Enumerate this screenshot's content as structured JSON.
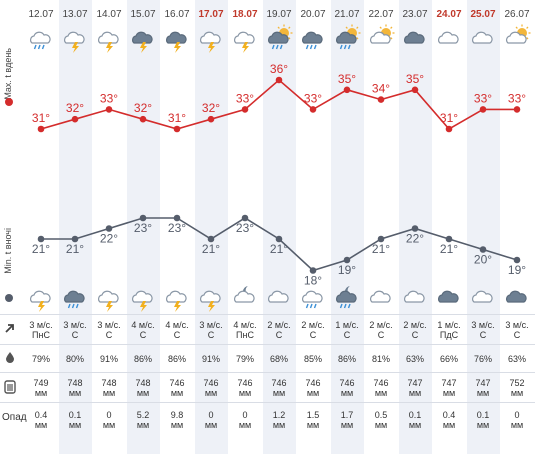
{
  "days": [
    {
      "date": "12.07",
      "weekend": false,
      "tmax": 31,
      "tmax_label": "31°",
      "tmin": 21,
      "tmin_label": "21°",
      "day_icon": "cloud-rain-icon",
      "night_icon": "cloud-lightning-icon",
      "wind": "3 м/с.",
      "wind_dir": "ПнС",
      "humidity": "79%",
      "pressure": "749",
      "pressure_unit": "мм",
      "precip": "0.4",
      "precip_unit": "мм"
    },
    {
      "date": "13.07",
      "weekend": false,
      "tmax": 32,
      "tmax_label": "32°",
      "tmin": 21,
      "tmin_label": "21°",
      "day_icon": "cloud-lightning-icon",
      "night_icon": "dark-cloud-rain-icon",
      "wind": "3 м/с.",
      "wind_dir": "С",
      "humidity": "80%",
      "pressure": "748",
      "pressure_unit": "мм",
      "precip": "0.1",
      "precip_unit": "мм"
    },
    {
      "date": "14.07",
      "weekend": false,
      "tmax": 33,
      "tmax_label": "33°",
      "tmin": 22,
      "tmin_label": "22°",
      "day_icon": "cloud-lightning-icon",
      "night_icon": "cloud-lightning-icon",
      "wind": "3 м/с.",
      "wind_dir": "С",
      "humidity": "91%",
      "pressure": "748",
      "pressure_unit": "мм",
      "precip": "0",
      "precip_unit": "мм"
    },
    {
      "date": "15.07",
      "weekend": false,
      "tmax": 32,
      "tmax_label": "32°",
      "tmin": 23,
      "tmin_label": "23°",
      "day_icon": "dark-cloud-lightning-icon",
      "night_icon": "cloud-lightning-icon",
      "wind": "4 м/с.",
      "wind_dir": "С",
      "humidity": "86%",
      "pressure": "748",
      "pressure_unit": "мм",
      "precip": "5.2",
      "precip_unit": "мм"
    },
    {
      "date": "16.07",
      "weekend": false,
      "tmax": 31,
      "tmax_label": "31°",
      "tmin": 23,
      "tmin_label": "23°",
      "day_icon": "dark-cloud-lightning-icon",
      "night_icon": "cloud-lightning-icon",
      "wind": "4 м/с.",
      "wind_dir": "С",
      "humidity": "86%",
      "pressure": "746",
      "pressure_unit": "мм",
      "precip": "9.8",
      "precip_unit": "мм"
    },
    {
      "date": "17.07",
      "weekend": true,
      "tmax": 32,
      "tmax_label": "32°",
      "tmin": 21,
      "tmin_label": "21°",
      "day_icon": "cloud-lightning-icon",
      "night_icon": "cloud-lightning-icon",
      "wind": "3 м/с.",
      "wind_dir": "С",
      "humidity": "91%",
      "pressure": "746",
      "pressure_unit": "мм",
      "precip": "0",
      "precip_unit": "мм"
    },
    {
      "date": "18.07",
      "weekend": true,
      "tmax": 33,
      "tmax_label": "33°",
      "tmin": 23,
      "tmin_label": "23°",
      "day_icon": "cloud-lightning-icon",
      "night_icon": "moon-cloud-icon",
      "wind": "4 м/с.",
      "wind_dir": "ПнС",
      "humidity": "79%",
      "pressure": "746",
      "pressure_unit": "мм",
      "precip": "0",
      "precip_unit": "мм"
    },
    {
      "date": "19.07",
      "weekend": false,
      "tmax": 36,
      "tmax_label": "36°",
      "tmin": 21,
      "tmin_label": "21°",
      "day_icon": "sun-cloud-rain-icon",
      "night_icon": "cloud-icon",
      "wind": "2 м/с.",
      "wind_dir": "С",
      "humidity": "68%",
      "pressure": "746",
      "pressure_unit": "мм",
      "precip": "1.2",
      "precip_unit": "мм"
    },
    {
      "date": "20.07",
      "weekend": false,
      "tmax": 33,
      "tmax_label": "33°",
      "tmin": 18,
      "tmin_label": "18°",
      "day_icon": "dark-cloud-rain-icon",
      "night_icon": "cloud-rain-icon",
      "wind": "2 м/с.",
      "wind_dir": "С",
      "humidity": "85%",
      "pressure": "746",
      "pressure_unit": "мм",
      "precip": "1.5",
      "precip_unit": "мм"
    },
    {
      "date": "21.07",
      "weekend": false,
      "tmax": 35,
      "tmax_label": "35°",
      "tmin": 19,
      "tmin_label": "19°",
      "day_icon": "sun-cloud-rain-icon",
      "night_icon": "moon-cloud-rain-icon",
      "wind": "1 м/с.",
      "wind_dir": "С",
      "humidity": "86%",
      "pressure": "746",
      "pressure_unit": "мм",
      "precip": "1.7",
      "precip_unit": "мм"
    },
    {
      "date": "22.07",
      "weekend": false,
      "tmax": 34,
      "tmax_label": "34°",
      "tmin": 21,
      "tmin_label": "21°",
      "day_icon": "sun-cloud-icon",
      "night_icon": "cloud-icon",
      "wind": "2 м/с.",
      "wind_dir": "С",
      "humidity": "81%",
      "pressure": "746",
      "pressure_unit": "мм",
      "precip": "0.5",
      "precip_unit": "мм"
    },
    {
      "date": "23.07",
      "weekend": false,
      "tmax": 35,
      "tmax_label": "35°",
      "tmin": 22,
      "tmin_label": "22°",
      "day_icon": "dark-cloud-icon",
      "night_icon": "cloud-icon",
      "wind": "2 м/с.",
      "wind_dir": "С",
      "humidity": "63%",
      "pressure": "747",
      "pressure_unit": "мм",
      "precip": "0.1",
      "precip_unit": "мм"
    },
    {
      "date": "24.07",
      "weekend": true,
      "tmax": 31,
      "tmax_label": "31°",
      "tmin": 21,
      "tmin_label": "21°",
      "day_icon": "cloud-icon",
      "night_icon": "dark-cloud-icon",
      "wind": "1 м/с.",
      "wind_dir": "ПдС",
      "humidity": "66%",
      "pressure": "747",
      "pressure_unit": "мм",
      "precip": "0.4",
      "precip_unit": "мм"
    },
    {
      "date": "25.07",
      "weekend": true,
      "tmax": 33,
      "tmax_label": "33°",
      "tmin": 20,
      "tmin_label": "20°",
      "day_icon": "cloud-icon",
      "night_icon": "cloud-icon",
      "wind": "3 м/с.",
      "wind_dir": "С",
      "humidity": "76%",
      "pressure": "747",
      "pressure_unit": "мм",
      "precip": "0.1",
      "precip_unit": "мм"
    },
    {
      "date": "26.07",
      "weekend": false,
      "tmax": 33,
      "tmax_label": "33°",
      "tmin": 19,
      "tmin_label": "19°",
      "day_icon": "sun-cloud-icon",
      "night_icon": "dark-cloud-icon",
      "wind": "3 м/с.",
      "wind_dir": "С",
      "humidity": "63%",
      "pressure": "752",
      "pressure_unit": "мм",
      "precip": "0",
      "precip_unit": "мм"
    }
  ],
  "labels": {
    "max_day": "Max. t вдень",
    "min_night": "Min. t вночі",
    "precip": "Опад"
  },
  "row_icons": {
    "wind": "wind-arrow-icon",
    "humidity": "droplet-icon",
    "pressure": "barometer-icon"
  },
  "colors": {
    "max_line": "#d42c2c",
    "min_line": "#555d6b",
    "weekend_date": "#c0392b",
    "stripe": "#eef1f7"
  }
}
